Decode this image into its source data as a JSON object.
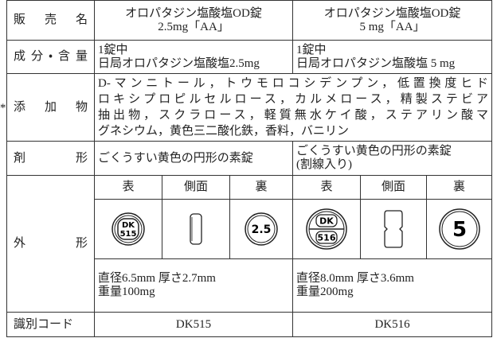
{
  "side_mark": "*",
  "rows": [
    {
      "label": "販売名",
      "a": [
        "オロパタジン塩酸塩OD錠",
        "2.5mg「AA」"
      ],
      "b": [
        "オロパタジン塩酸塩OD錠",
        "5 mg「AA」"
      ]
    },
    {
      "label": "成分・含量",
      "a": [
        "1錠中",
        "日局オロパタジン塩酸塩2.5mg"
      ],
      "b": [
        "1錠中",
        "日局オロパタジン塩酸塩 5 mg"
      ]
    },
    {
      "label": "添加物",
      "text": [
        "D-マンニトール，トウモロコシデンプン，低置換度ヒド",
        "ロキシプロピルセルロース，カルメロース，精製ステビア",
        "抽出物，スクラロース，軽質無水ケイ酸，ステアリン酸マ",
        "グネシウム，黄色三二酸化鉄，香料，バニリン"
      ]
    },
    {
      "label": "剤形",
      "a": [
        "ごくうすい黄色の円形の素錠"
      ],
      "b": [
        "ごくうすい黄色の円形の素錠",
        "(割線入り)"
      ]
    },
    {
      "label": "外形",
      "views": [
        "表",
        "側面",
        "裏",
        "表",
        "側面",
        "裏"
      ],
      "a_marks": [
        "DK",
        "515",
        "2.5"
      ],
      "b_marks": [
        "DK",
        "516",
        "5"
      ],
      "a": [
        "直径6.5mm 厚さ2.7mm",
        "重量100mg"
      ],
      "b": [
        "直径8.0mm 厚さ3.6mm",
        "重量200mg"
      ]
    },
    {
      "label": "識別コード",
      "a": [
        "DK515"
      ],
      "b": [
        "DK516"
      ]
    }
  ]
}
